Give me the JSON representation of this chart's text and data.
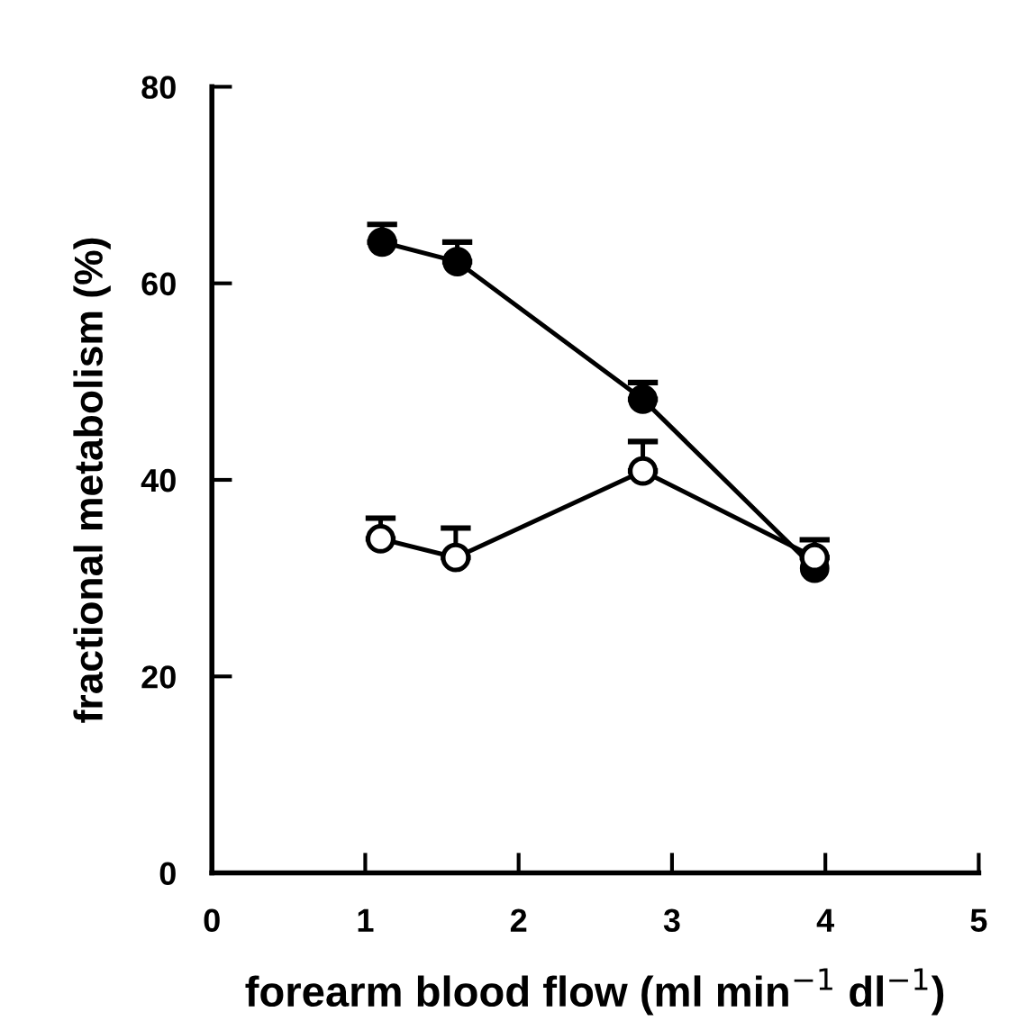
{
  "chart_data": {
    "type": "line",
    "xlabel": "forearm blood flow (ml min$^{−1}$ dl$^{−1}$)",
    "ylabel": "fractional metabolism (%)",
    "xlim": [
      0,
      5
    ],
    "xticks": [
      0,
      1,
      2,
      3,
      4,
      5
    ],
    "ylim": [
      0,
      80
    ],
    "yticks": [
      0,
      20,
      40,
      60,
      80
    ],
    "marker": "circle",
    "line_style": "solid",
    "grid": false,
    "legend": false,
    "series": [
      {
        "color": "#000000",
        "x": [
          1.11,
          1.6,
          2.81,
          3.93
        ],
        "values": [
          64.2,
          62.2,
          48.2,
          31.0
        ],
        "errors": [
          [
            64.2,
            66.0
          ],
          [
            62.2,
            64.2
          ],
          [
            48.2,
            49.9
          ],
          null
        ]
      },
      {
        "color": "#000000",
        "x": [
          1.1,
          1.59,
          2.81,
          3.93
        ],
        "values": [
          34.0,
          32.1,
          40.9,
          32.1
        ],
        "errors": [
          [
            34.0,
            36.1
          ],
          [
            32.1,
            35.1
          ],
          [
            40.9,
            43.9
          ],
          [
            32.1,
            33.9
          ]
        ]
      }
    ]
  }
}
